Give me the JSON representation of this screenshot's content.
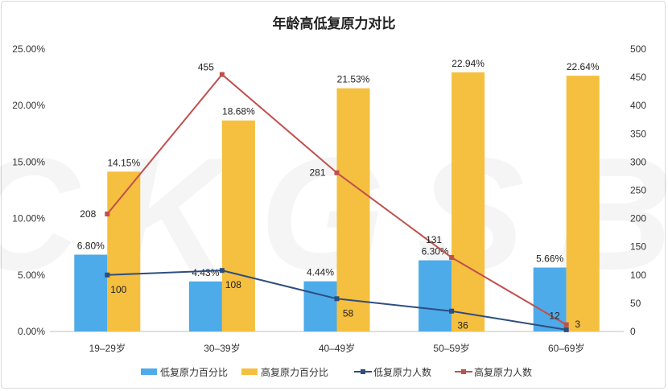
{
  "chart_data": {
    "type": "bar",
    "title": "年龄高低复原力对比",
    "watermark": "CKGSB",
    "categories": [
      "19–29岁",
      "30–39岁",
      "40–49岁",
      "50–59岁",
      "60–69岁"
    ],
    "left_axis": {
      "ylim": [
        0,
        25
      ],
      "ticks": [
        "0.00%",
        "5.00%",
        "10.00%",
        "15.00%",
        "20.00%",
        "25.00%"
      ]
    },
    "right_axis": {
      "ylim": [
        0,
        500
      ],
      "ticks": [
        "0",
        "50",
        "100",
        "150",
        "200",
        "250",
        "300",
        "350",
        "400",
        "450",
        "500"
      ]
    },
    "series": [
      {
        "name": "低复原力百分比",
        "kind": "bar",
        "axis": "left",
        "color": "#4dabe9",
        "values": [
          6.8,
          4.43,
          4.44,
          6.3,
          5.66
        ],
        "labels": [
          "6.80%",
          "4.43%",
          "4.44%",
          "6.30%",
          "5.66%"
        ]
      },
      {
        "name": "高复原力百分比",
        "kind": "bar",
        "axis": "left",
        "color": "#f5bf3f",
        "values": [
          14.15,
          18.68,
          21.53,
          22.94,
          22.64
        ],
        "labels": [
          "14.15%",
          "18.68%",
          "21.53%",
          "22.94%",
          "22.64%"
        ]
      },
      {
        "name": "低复原力人数",
        "kind": "line",
        "axis": "right",
        "color": "#2e4d80",
        "values": [
          100,
          108,
          58,
          36,
          3
        ],
        "labels": [
          "100",
          "108",
          "58",
          "36",
          "3"
        ]
      },
      {
        "name": "高复原力人数",
        "kind": "line",
        "axis": "right",
        "color": "#c0504d",
        "values": [
          208,
          455,
          281,
          131,
          12
        ],
        "labels": [
          "208",
          "455",
          "281",
          "131",
          "12"
        ]
      }
    ],
    "legend": "bottom"
  }
}
